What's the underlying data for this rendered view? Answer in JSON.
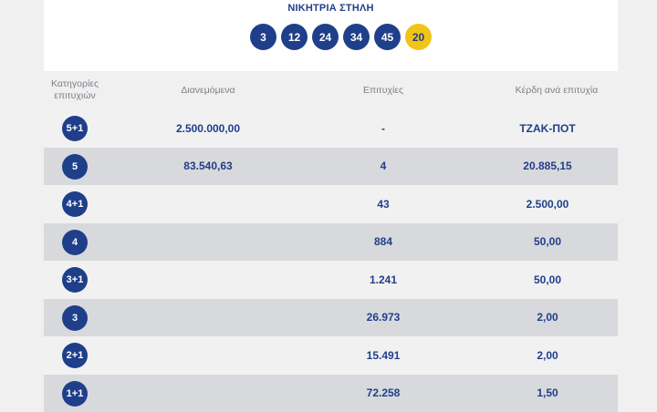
{
  "header": {
    "title": "ΝΙΚΗΤΡΙΑ ΣΤΗΛΗ",
    "numbers": [
      "3",
      "12",
      "24",
      "34",
      "45"
    ],
    "joker": "20",
    "colors": {
      "primary": "#1f3f8a",
      "joker": "#f2c416"
    }
  },
  "table": {
    "columns": {
      "category": "Κατηγορίες επιτυχιών",
      "distributed": "Διανεμόμενα",
      "winners": "Επιτυχίες",
      "prize": "Κέρδη ανά επιτυχία"
    },
    "rows": [
      {
        "category": "5+1",
        "distributed": "2.500.000,00",
        "winners": "-",
        "prize": "ΤΖΑΚ-ΠΟΤ"
      },
      {
        "category": "5",
        "distributed": "83.540,63",
        "winners": "4",
        "prize": "20.885,15"
      },
      {
        "category": "4+1",
        "distributed": "",
        "winners": "43",
        "prize": "2.500,00"
      },
      {
        "category": "4",
        "distributed": "",
        "winners": "884",
        "prize": "50,00"
      },
      {
        "category": "3+1",
        "distributed": "",
        "winners": "1.241",
        "prize": "50,00"
      },
      {
        "category": "3",
        "distributed": "",
        "winners": "26.973",
        "prize": "2,00"
      },
      {
        "category": "2+1",
        "distributed": "",
        "winners": "15.491",
        "prize": "2,00"
      },
      {
        "category": "1+1",
        "distributed": "",
        "winners": "72.258",
        "prize": "1,50"
      }
    ]
  }
}
